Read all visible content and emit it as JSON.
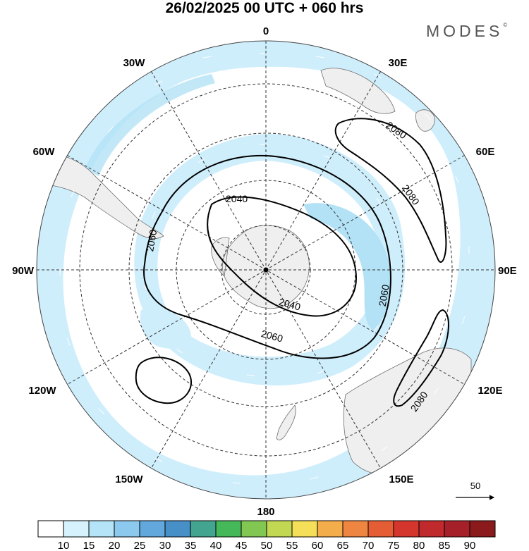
{
  "header": {
    "title": "26/02/2025  00 UTC  + 060 hrs",
    "brand": "MODES",
    "brand_mark": "©"
  },
  "map": {
    "projection": "south-polar-stereographic",
    "longitude_labels": [
      "0",
      "30E",
      "60E",
      "90E",
      "120E",
      "150E",
      "180",
      "150W",
      "120W",
      "90W",
      "60W",
      "30W"
    ],
    "contour_labels": [
      "2040",
      "2040",
      "2060",
      "2060",
      "2060",
      "2080",
      "2080",
      "2080"
    ],
    "vector_reference": {
      "label": "50"
    },
    "colors": {
      "land": "#efefef",
      "coast": "#6e6e6e",
      "speed_10_15": "#cfeefc",
      "speed_15_20": "#b3e2f6",
      "contour": "#000000"
    }
  },
  "colorbar": {
    "labels": [
      "10",
      "15",
      "20",
      "25",
      "30",
      "35",
      "40",
      "45",
      "50",
      "55",
      "60",
      "65",
      "70",
      "75",
      "80",
      "85",
      "90"
    ],
    "colors": [
      "#ffffff",
      "#d6f3fd",
      "#b5e3f7",
      "#8bc9ee",
      "#62a8dc",
      "#4690c7",
      "#43a48f",
      "#45b85a",
      "#83c753",
      "#c3d852",
      "#f5df58",
      "#f3ad4b",
      "#ee8540",
      "#e45d34",
      "#d4362e",
      "#c12a2d",
      "#a6202a",
      "#8a1a1c"
    ]
  }
}
